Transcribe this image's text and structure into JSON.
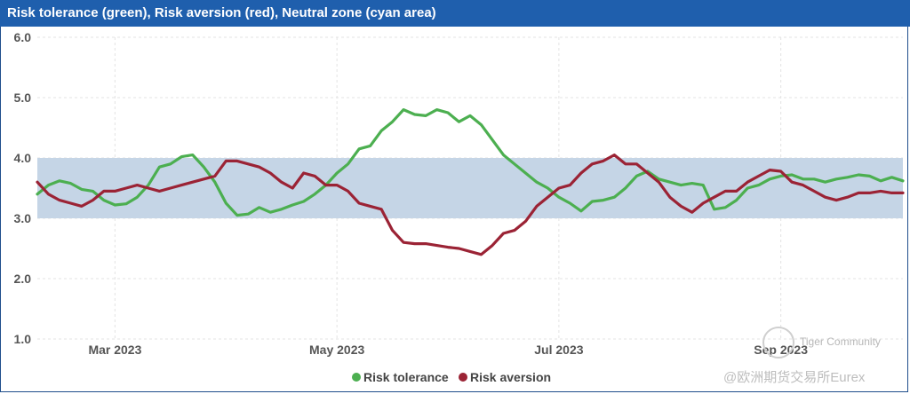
{
  "header": {
    "title": "Risk tolerance (green), Risk aversion (red), Neutral zone (cyan area)"
  },
  "watermark": {
    "line1": "Tiger Community",
    "line2": "@欧洲期货交易所Eurex"
  },
  "chart_data": {
    "type": "line",
    "title": "Risk tolerance (green), Risk aversion (red), Neutral zone (cyan area)",
    "xlabel": "",
    "ylabel": "",
    "ylim": [
      1.0,
      6.0
    ],
    "yticks": [
      "1.0",
      "2.0",
      "3.0",
      "4.0",
      "5.0",
      "6.0"
    ],
    "xticks": [
      "Mar 2023",
      "May 2023",
      "Jul 2023",
      "Sep 2023"
    ],
    "xtick_positions": [
      1.6,
      3.6,
      5.6,
      7.6
    ],
    "xlim": [
      0.9,
      8.7
    ],
    "neutral_zone": [
      3.0,
      4.0
    ],
    "grid": true,
    "legend_position": "bottom-center",
    "series": [
      {
        "name": "Risk tolerance",
        "color": "#4caf50",
        "x": [
          0.9,
          1.0,
          1.1,
          1.2,
          1.3,
          1.4,
          1.5,
          1.6,
          1.7,
          1.8,
          1.9,
          2.0,
          2.1,
          2.2,
          2.3,
          2.4,
          2.5,
          2.6,
          2.7,
          2.8,
          2.9,
          3.0,
          3.1,
          3.2,
          3.3,
          3.4,
          3.5,
          3.6,
          3.7,
          3.8,
          3.9,
          4.0,
          4.1,
          4.2,
          4.3,
          4.4,
          4.5,
          4.6,
          4.7,
          4.8,
          4.9,
          5.0,
          5.1,
          5.2,
          5.3,
          5.4,
          5.5,
          5.6,
          5.7,
          5.8,
          5.9,
          6.0,
          6.1,
          6.2,
          6.3,
          6.4,
          6.5,
          6.6,
          6.7,
          6.8,
          6.9,
          7.0,
          7.1,
          7.2,
          7.3,
          7.4,
          7.5,
          7.6,
          7.7,
          7.8,
          7.9,
          8.0,
          8.1,
          8.2,
          8.3,
          8.4,
          8.5,
          8.6,
          8.7
        ],
        "values": [
          3.4,
          3.55,
          3.62,
          3.58,
          3.48,
          3.45,
          3.3,
          3.22,
          3.24,
          3.35,
          3.55,
          3.85,
          3.9,
          4.02,
          4.05,
          3.85,
          3.6,
          3.25,
          3.05,
          3.07,
          3.18,
          3.1,
          3.15,
          3.22,
          3.28,
          3.4,
          3.55,
          3.75,
          3.9,
          4.15,
          4.2,
          4.45,
          4.6,
          4.8,
          4.72,
          4.7,
          4.8,
          4.75,
          4.6,
          4.7,
          4.55,
          4.3,
          4.05,
          3.9,
          3.75,
          3.6,
          3.5,
          3.35,
          3.25,
          3.12,
          3.28,
          3.3,
          3.35,
          3.5,
          3.7,
          3.78,
          3.65,
          3.6,
          3.55,
          3.58,
          3.55,
          3.15,
          3.18,
          3.3,
          3.5,
          3.55,
          3.65,
          3.7,
          3.72,
          3.65,
          3.65,
          3.6,
          3.65,
          3.68,
          3.72,
          3.7,
          3.62,
          3.68,
          3.62
        ]
      },
      {
        "name": "Risk aversion",
        "color": "#9b2335",
        "x": [
          0.9,
          1.0,
          1.1,
          1.2,
          1.3,
          1.4,
          1.5,
          1.6,
          1.7,
          1.8,
          1.9,
          2.0,
          2.1,
          2.2,
          2.3,
          2.4,
          2.5,
          2.6,
          2.7,
          2.8,
          2.9,
          3.0,
          3.1,
          3.2,
          3.3,
          3.4,
          3.5,
          3.6,
          3.7,
          3.8,
          3.9,
          4.0,
          4.1,
          4.2,
          4.3,
          4.4,
          4.5,
          4.6,
          4.7,
          4.8,
          4.9,
          5.0,
          5.1,
          5.2,
          5.3,
          5.4,
          5.5,
          5.6,
          5.7,
          5.8,
          5.9,
          6.0,
          6.1,
          6.2,
          6.3,
          6.4,
          6.5,
          6.6,
          6.7,
          6.8,
          6.9,
          7.0,
          7.1,
          7.2,
          7.3,
          7.4,
          7.5,
          7.6,
          7.7,
          7.8,
          7.9,
          8.0,
          8.1,
          8.2,
          8.3,
          8.4,
          8.5,
          8.6,
          8.7
        ],
        "values": [
          3.6,
          3.4,
          3.3,
          3.25,
          3.2,
          3.3,
          3.45,
          3.45,
          3.5,
          3.55,
          3.5,
          3.45,
          3.5,
          3.55,
          3.6,
          3.65,
          3.7,
          3.95,
          3.95,
          3.9,
          3.85,
          3.75,
          3.6,
          3.5,
          3.75,
          3.7,
          3.55,
          3.55,
          3.45,
          3.25,
          3.2,
          3.15,
          2.8,
          2.6,
          2.58,
          2.58,
          2.55,
          2.52,
          2.5,
          2.45,
          2.4,
          2.55,
          2.75,
          2.8,
          2.95,
          3.2,
          3.35,
          3.5,
          3.55,
          3.75,
          3.9,
          3.95,
          4.05,
          3.9,
          3.9,
          3.75,
          3.6,
          3.35,
          3.2,
          3.1,
          3.25,
          3.35,
          3.45,
          3.45,
          3.6,
          3.7,
          3.8,
          3.78,
          3.6,
          3.55,
          3.45,
          3.35,
          3.3,
          3.35,
          3.42,
          3.42,
          3.45,
          3.42,
          3.42
        ]
      }
    ]
  }
}
